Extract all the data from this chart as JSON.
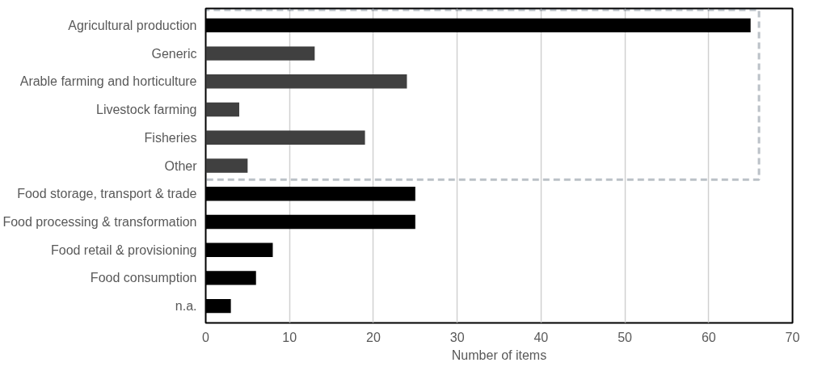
{
  "chart_data": {
    "type": "bar",
    "orientation": "horizontal",
    "xlabel": "Number of items",
    "categories": [
      "Agricultural production",
      "Generic",
      "Arable farming and horticulture",
      "Livestock farming",
      "Fisheries",
      "Other",
      "Food storage, transport & trade",
      "Food processing & transformation",
      "Food retail & provisioning",
      "Food consumption",
      "n.a."
    ],
    "values": [
      65,
      13,
      24,
      4,
      19,
      5,
      25,
      25,
      8,
      6,
      3
    ],
    "colors": [
      "#000000",
      "#404040",
      "#404040",
      "#404040",
      "#404040",
      "#404040",
      "#000000",
      "#000000",
      "#000000",
      "#000000",
      "#000000"
    ],
    "xlim": [
      0,
      70
    ],
    "xticks": [
      0,
      10,
      20,
      30,
      40,
      50,
      60,
      70
    ],
    "grid": "x"
  }
}
